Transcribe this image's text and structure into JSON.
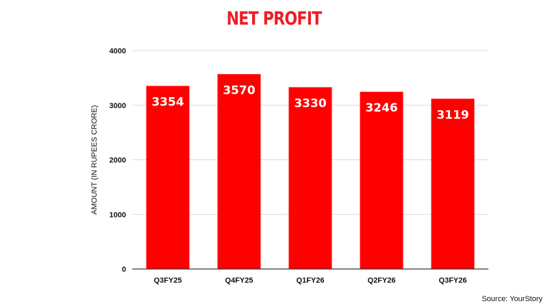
{
  "chart_data": {
    "type": "bar",
    "title": "NET PROFIT",
    "xlabel": "",
    "ylabel": "AMOUNT (IN RUPEES CRORE)",
    "categories": [
      "Q3FY25",
      "Q4FY25",
      "Q1FY26",
      "Q2FY26",
      "Q3FY26"
    ],
    "values": [
      3354,
      3570,
      3330,
      3246,
      3119
    ],
    "data_labels": [
      "3354",
      "3570",
      "3330",
      "3246",
      "3119"
    ],
    "ylim": [
      0,
      4000
    ],
    "yticks": [
      0,
      1000,
      2000,
      3000,
      4000
    ],
    "ytick_labels": [
      "0",
      "1000",
      "2000",
      "3000",
      "4000"
    ],
    "grid": true,
    "legend": "none"
  },
  "source_note": "Source: YourStory",
  "colors": {
    "bar": "#ff0000",
    "title": "#ee1c25",
    "grid": "#d9d9d9",
    "axis": "#333333",
    "tick_text": "#111111",
    "bar_label": "#ffffff"
  }
}
